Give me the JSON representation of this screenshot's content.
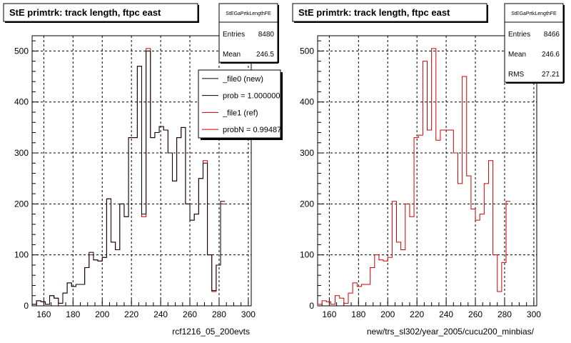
{
  "chart_data": [
    {
      "type": "histogram",
      "title": "StE primtrk: track length, ftpc east",
      "xlabel": "rcf1216_05_200evts",
      "ylabel": "",
      "xlim": [
        152,
        302
      ],
      "ylim": [
        0,
        530
      ],
      "xticks": [
        160,
        180,
        200,
        220,
        240,
        260,
        280,
        300
      ],
      "yticks": [
        0,
        100,
        200,
        300,
        400,
        500
      ],
      "grid": true,
      "bin_width": 3,
      "x_start": 152,
      "stats": {
        "title": "StEGaPrtkLengthFE",
        "rows": [
          {
            "label": "Entries",
            "value": "8480"
          },
          {
            "label": "Mean",
            "value": "246.5"
          }
        ]
      },
      "legend": {
        "placement": "top-right",
        "entries": [
          {
            "label": "_file0 (new)",
            "color": "#000000"
          },
          {
            "label": "prob = 1.000000",
            "color": "#000000"
          },
          {
            "label": "_file1 (ref)",
            "color": "#cc0000"
          },
          {
            "label": "probN = 0.99487",
            "color": "#cc0000"
          }
        ]
      },
      "series": [
        {
          "name": "_file0 (new)",
          "color": "#000000",
          "values": [
            3,
            10,
            8,
            3,
            20,
            15,
            5,
            25,
            45,
            38,
            42,
            42,
            75,
            105,
            90,
            88,
            95,
            210,
            125,
            110,
            200,
            175,
            330,
            330,
            470,
            180,
            500,
            330,
            340,
            352,
            345,
            300,
            245,
            330,
            350,
            200,
            168,
            180,
            250,
            280,
            100,
            30,
            80,
            205
          ]
        },
        {
          "name": "_file1 (ref)",
          "color": "#cc0000",
          "values": [
            3,
            10,
            8,
            3,
            20,
            15,
            5,
            25,
            45,
            38,
            42,
            42,
            75,
            100,
            90,
            88,
            95,
            210,
            125,
            110,
            200,
            175,
            330,
            330,
            470,
            175,
            505,
            330,
            340,
            352,
            345,
            300,
            245,
            330,
            350,
            200,
            168,
            180,
            250,
            285,
            100,
            28,
            80,
            200
          ]
        }
      ]
    },
    {
      "type": "histogram",
      "title": "StE primtrk: track length, ftpc east",
      "xlabel": "new/trs_sl302/year_2005/cucu200_minbias/",
      "ylabel": "",
      "xlim": [
        152,
        302
      ],
      "ylim": [
        0,
        530
      ],
      "xticks": [
        160,
        180,
        200,
        220,
        240,
        260,
        280,
        300
      ],
      "yticks": [
        0,
        100,
        200,
        300,
        400,
        500
      ],
      "grid": true,
      "bin_width": 3,
      "x_start": 152,
      "stats": {
        "title": "StEGaPrtkLengthFE",
        "rows": [
          {
            "label": "Entries",
            "value": "8466"
          },
          {
            "label": "Mean",
            "value": "246.6"
          },
          {
            "label": "RMS",
            "value": "27.21"
          }
        ]
      },
      "series": [
        {
          "name": "",
          "color": "#cc0000",
          "values": [
            3,
            10,
            8,
            3,
            20,
            15,
            5,
            25,
            45,
            38,
            42,
            42,
            75,
            100,
            90,
            88,
            95,
            205,
            125,
            110,
            200,
            175,
            330,
            335,
            480,
            345,
            505,
            325,
            345,
            345,
            345,
            300,
            240,
            450,
            255,
            190,
            168,
            180,
            240,
            285,
            100,
            28,
            85,
            205
          ]
        }
      ]
    }
  ]
}
